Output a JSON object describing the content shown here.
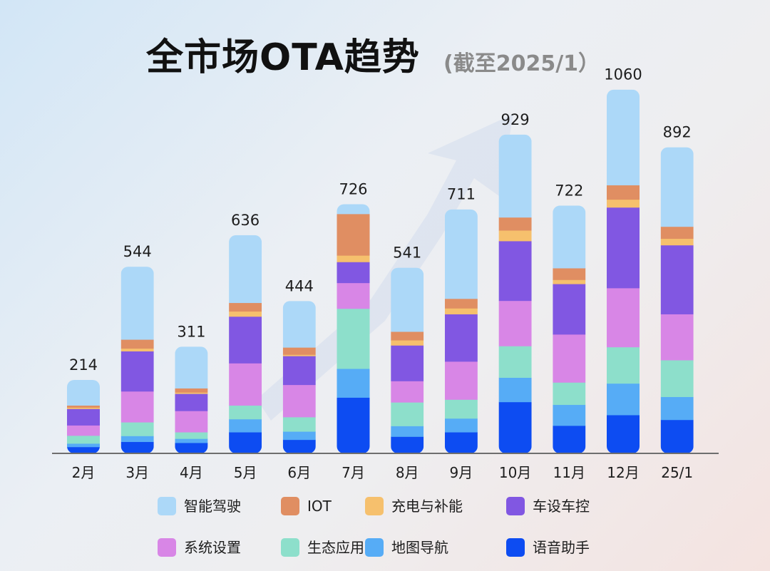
{
  "title": "全市场OTA趋势",
  "subtitle": "(截至2025/1）",
  "chart_data": {
    "type": "bar",
    "stacked": true,
    "title": "全市场OTA趋势",
    "subtitle": "(截至2025/1）",
    "xlabel": "",
    "ylabel": "",
    "ylim": [
      0,
      1100
    ],
    "categories": [
      "2月",
      "3月",
      "4月",
      "5月",
      "6月",
      "7月",
      "8月",
      "9月",
      "10月",
      "11月",
      "12月",
      "25/1"
    ],
    "totals": [
      214,
      544,
      311,
      636,
      444,
      726,
      541,
      711,
      929,
      722,
      1060,
      892
    ],
    "series": [
      {
        "name": "语音助手",
        "color": "#0d4cf2",
        "values": [
          19,
          34,
          31,
          62,
          40,
          163,
          49,
          62,
          150,
          81,
          112,
          98
        ]
      },
      {
        "name": "地图导航",
        "color": "#56acf6",
        "values": [
          10,
          17,
          12,
          38,
          24,
          84,
          31,
          40,
          71,
          61,
          92,
          67
        ]
      },
      {
        "name": "生态应用",
        "color": "#8ddfcb",
        "values": [
          23,
          40,
          19,
          40,
          42,
          175,
          69,
          55,
          92,
          65,
          106,
          107
        ]
      },
      {
        "name": "系统设置",
        "color": "#d886e6",
        "values": [
          30,
          90,
          62,
          123,
          94,
          75,
          62,
          111,
          132,
          140,
          172,
          134
        ]
      },
      {
        "name": "车设车控",
        "color": "#8157e2",
        "values": [
          48,
          117,
          50,
          136,
          84,
          61,
          104,
          138,
          174,
          147,
          235,
          201
        ]
      },
      {
        "name": "充电与补能",
        "color": "#f6c06d",
        "values": [
          4,
          8,
          4,
          15,
          4,
          19,
          15,
          17,
          31,
          12,
          23,
          19
        ]
      },
      {
        "name": "IOT",
        "color": "#e08e62",
        "values": [
          6,
          26,
          12,
          25,
          21,
          121,
          25,
          28,
          38,
          34,
          42,
          35
        ]
      },
      {
        "name": "智能驾驶",
        "color": "#acd8f8",
        "values": [
          74,
          212,
          121,
          197,
          135,
          28,
          186,
          260,
          241,
          182,
          278,
          231
        ]
      }
    ],
    "legend_order": [
      "智能驾驶",
      "IOT",
      "充电与补能",
      "车设车控",
      "系统设置",
      "生态应用",
      "地图导航",
      "语音助手"
    ],
    "legend_position": "bottom",
    "grid": false
  }
}
